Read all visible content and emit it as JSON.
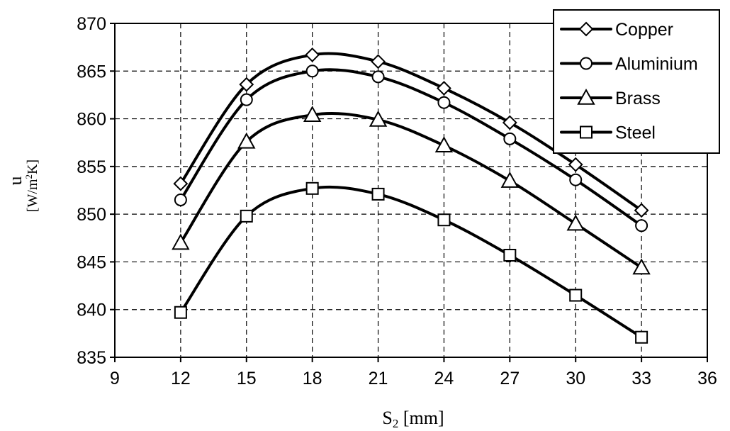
{
  "chart_data": {
    "type": "line",
    "xlabel": "S2 [mm]",
    "xlabel_main": "S",
    "xlabel_sub": "2",
    "xlabel_unit": " [mm]",
    "ylabel": "u [W/m2K]",
    "ylabel_main": "u",
    "ylabel_unit_pre": "[W/m",
    "ylabel_unit_sup": "2",
    "ylabel_unit_post": "K]",
    "xlim": [
      9,
      36
    ],
    "ylim": [
      835,
      870
    ],
    "xticks": [
      "9",
      "12",
      "15",
      "18",
      "21",
      "24",
      "27",
      "30",
      "33",
      "36"
    ],
    "yticks": [
      "835",
      "840",
      "845",
      "850",
      "855",
      "860",
      "865",
      "870"
    ],
    "grid": true,
    "legend_position": "top-right",
    "x": [
      12,
      15,
      18,
      21,
      24,
      27,
      30,
      33
    ],
    "series": [
      {
        "name": "Copper",
        "marker": "diamond",
        "values": [
          853.2,
          863.6,
          866.7,
          866.0,
          863.2,
          859.6,
          855.2,
          850.4
        ]
      },
      {
        "name": "Aluminium",
        "marker": "circle",
        "values": [
          851.5,
          862.0,
          865.0,
          864.4,
          861.7,
          857.9,
          853.6,
          848.8
        ]
      },
      {
        "name": "Brass",
        "marker": "triangle",
        "values": [
          847.0,
          857.6,
          860.4,
          859.9,
          857.2,
          853.5,
          849.0,
          844.4
        ]
      },
      {
        "name": "Steel",
        "marker": "square",
        "values": [
          839.7,
          849.8,
          852.7,
          852.1,
          849.4,
          845.7,
          841.5,
          837.1
        ]
      }
    ]
  }
}
